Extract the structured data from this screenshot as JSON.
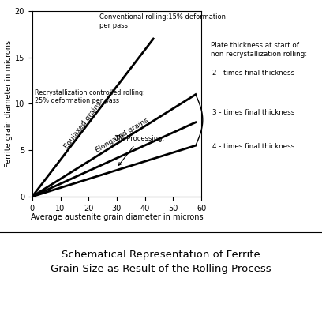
{
  "chart_data": {
    "type": "line",
    "title": "Schematical Representation of Ferrite\nGrain Size as Result of the Rolling Process",
    "x_label": "Average austenite grain diameter in microns",
    "y_label": "Ferrite grain diameter in microns",
    "xlim": [
      0,
      60
    ],
    "xticks": [
      0,
      10,
      20,
      30,
      40,
      50,
      60
    ],
    "ylim": [
      0,
      20
    ],
    "yticks": [
      0,
      5,
      10,
      15,
      20
    ],
    "grid": false,
    "color": "#000000",
    "series": [
      {
        "name": "Equiaxed grains",
        "x": [
          0,
          43
        ],
        "values": [
          0,
          17
        ]
      },
      {
        "name": "2 - times final thickness",
        "x": [
          0,
          58
        ],
        "values": [
          0,
          11
        ]
      },
      {
        "name": "3 - times final thickness",
        "x": [
          0,
          58
        ],
        "values": [
          0,
          8
        ]
      },
      {
        "name": "4 - times final thickness",
        "x": [
          0,
          58
        ],
        "values": [
          0,
          5.5
        ]
      }
    ],
    "annotations": {
      "conventional": "Conventional rolling:15% deformation\nper pass",
      "recrystallization": "Recrystallization controlled rolling:\n25% deformation per pass",
      "elongated": "Elongated grains",
      "tm": "TM-Processing:",
      "plate": "Plate thickness at start of\nnon recrystallization rolling:"
    }
  }
}
